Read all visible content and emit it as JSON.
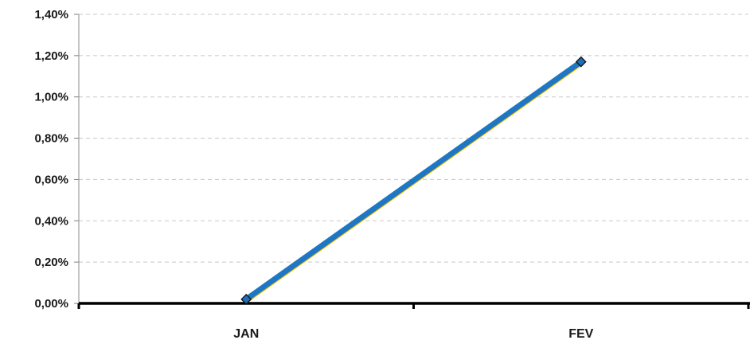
{
  "chart_data": {
    "type": "line",
    "categories": [
      "JAN",
      "FEV"
    ],
    "series": [
      {
        "values": [
          0.02,
          1.17
        ],
        "color": "#1f77c4",
        "shadow_color": "#f2c200",
        "marker_color": "#1f6fb5"
      }
    ],
    "title": "",
    "xlabel": "",
    "ylabel": "",
    "ylim": [
      0,
      1.4
    ],
    "y_ticks": [
      0,
      0.2,
      0.4,
      0.6,
      0.8,
      1.0,
      1.2,
      1.4
    ],
    "y_tick_labels": [
      "0,00%",
      "0,20%",
      "0,40%",
      "0,60%",
      "0,80%",
      "1,00%",
      "1,20%",
      "1,40%"
    ],
    "grid": true,
    "legend": "none"
  }
}
